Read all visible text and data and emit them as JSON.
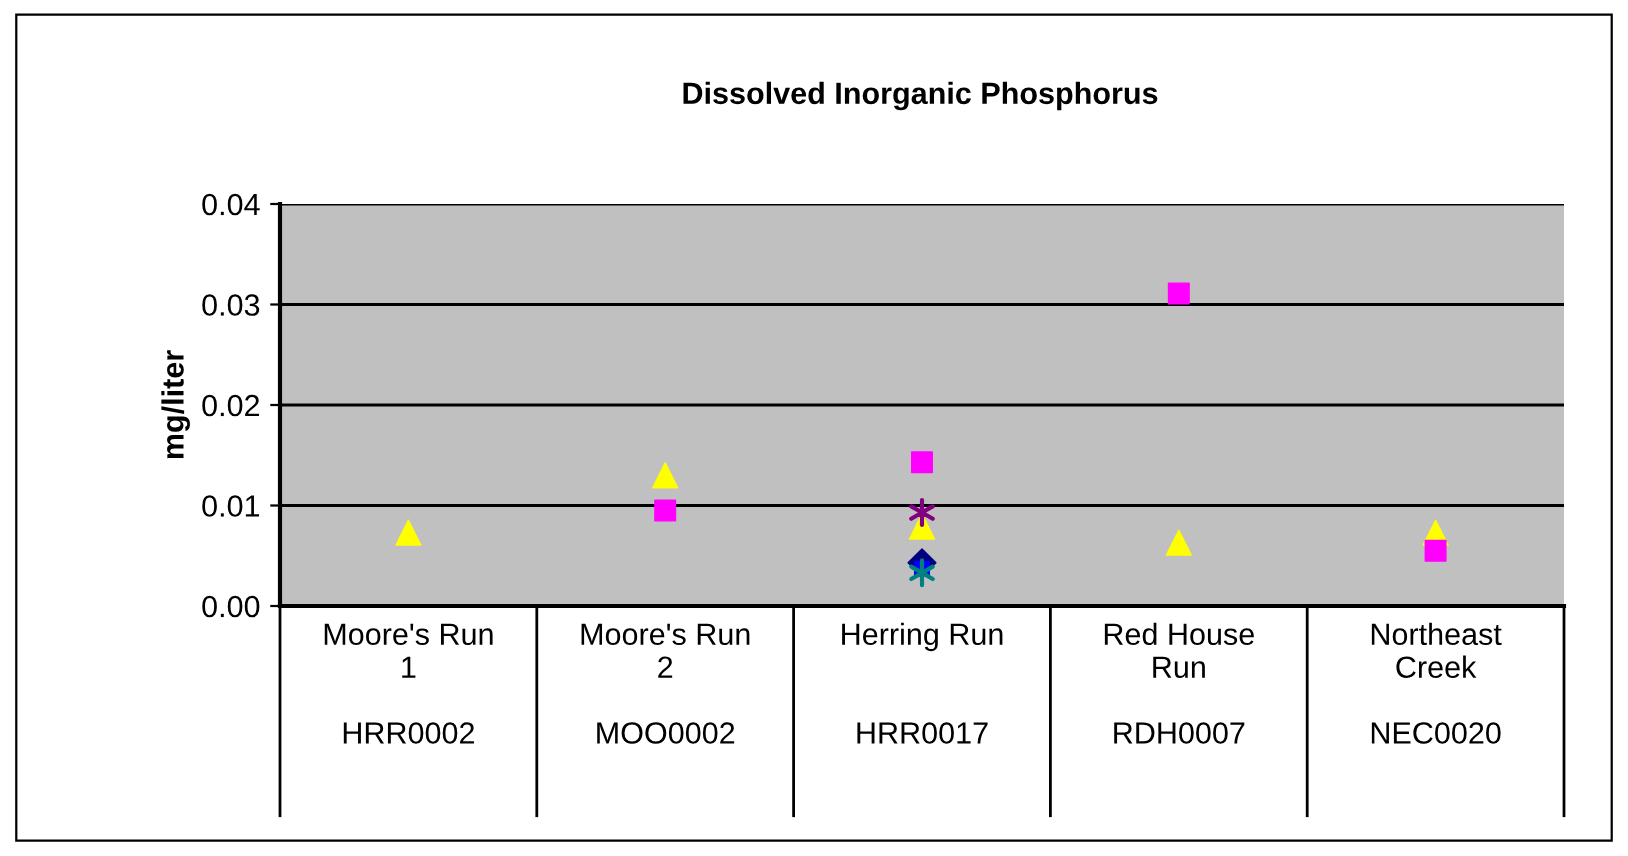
{
  "chart_data": {
    "type": "scatter",
    "title": "Dissolved Inorganic Phosphorus",
    "ylabel": "mg/liter",
    "categories": [
      "Moore's Run\n1\n\nHRR0002",
      "Moore's Run\n2\n\nMOO0002",
      "Herring Run\n\n\nHRR0017",
      "Red House\nRun\n\nRDH0007",
      "Northeast\nCreek\n\nNEC0020"
    ],
    "series": [
      {
        "color": "#ffff00",
        "marker": "triangle",
        "values": [
          0.0073,
          0.013,
          0.0079,
          0.0063,
          0.0073
        ]
      },
      {
        "color": "#ff00ff",
        "marker": "square",
        "values": [
          null,
          0.0095,
          0.0143,
          0.0311,
          0.0055
        ]
      },
      {
        "color": "#800080",
        "marker": "cross",
        "values": [
          null,
          null,
          0.0093,
          null,
          null
        ]
      },
      {
        "color": "#000080",
        "marker": "diamond",
        "values": [
          null,
          null,
          0.0043,
          null,
          null
        ]
      },
      {
        "color": "#0000ff",
        "marker": "square",
        "values": [
          null,
          null,
          0.0037,
          null,
          null
        ]
      },
      {
        "color": "#008080",
        "marker": "cross",
        "values": [
          null,
          null,
          0.0033,
          null,
          null
        ]
      }
    ],
    "ylim": [
      0,
      0.04
    ],
    "yticks": [
      {
        "value": 0,
        "label": "0.00"
      },
      {
        "value": 0.01,
        "label": "0.01"
      },
      {
        "value": 0.02,
        "label": "0.02"
      },
      {
        "value": 0.03,
        "label": "0.03"
      },
      {
        "value": 0.04,
        "label": "0.04"
      }
    ],
    "grid": "y",
    "legend": false
  }
}
